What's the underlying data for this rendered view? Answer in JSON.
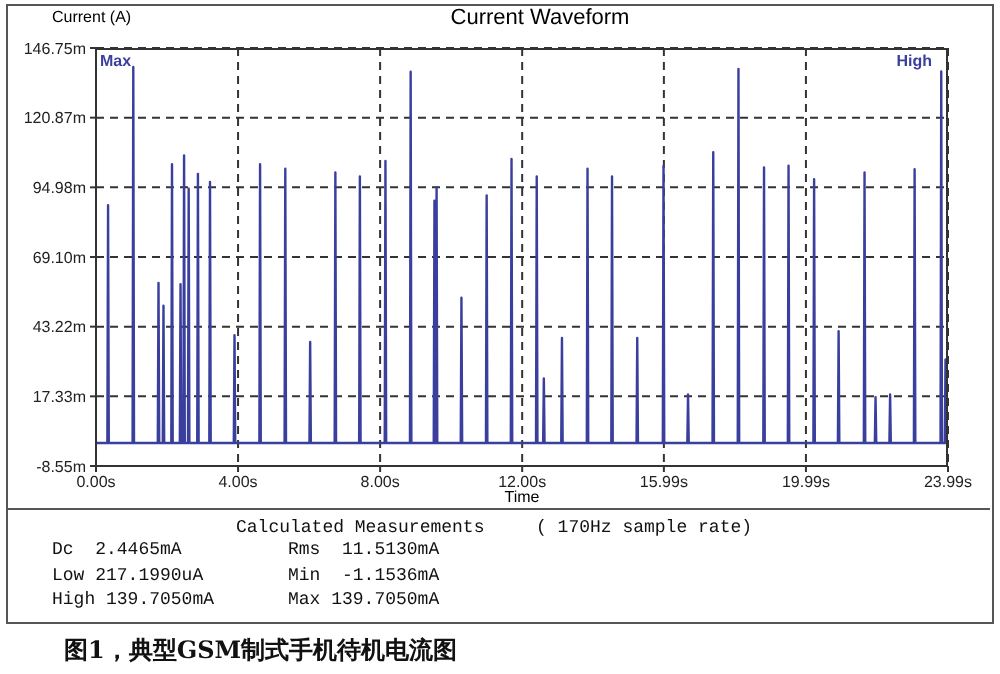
{
  "chart_data": {
    "type": "line",
    "title": "Current Waveform",
    "ylabel": "Current (A)",
    "xlabel": "Time",
    "x": [
      0,
      0.32,
      0.34,
      0.36,
      1.03,
      1.05,
      1.07,
      1.74,
      1.76,
      1.78,
      1.88,
      1.9,
      1.92,
      2.12,
      2.14,
      2.16,
      2.36,
      2.38,
      2.4,
      2.46,
      2.48,
      2.5,
      2.59,
      2.61,
      2.63,
      2.85,
      2.87,
      2.89,
      3.19,
      3.21,
      3.23,
      3.88,
      3.9,
      3.92,
      4.6,
      4.62,
      4.64,
      5.31,
      5.33,
      5.35,
      6.01,
      6.03,
      6.05,
      6.72,
      6.74,
      6.76,
      7.41,
      7.43,
      7.45,
      8.13,
      8.15,
      8.17,
      8.84,
      8.86,
      8.88,
      9.51,
      9.53,
      9.55,
      9.57,
      9.59,
      9.61,
      10.27,
      10.29,
      10.31,
      10.98,
      11,
      11.02,
      11.68,
      11.7,
      11.72,
      12.39,
      12.41,
      12.43,
      12.59,
      12.61,
      12.63,
      13.1,
      13.12,
      13.14,
      13.82,
      13.84,
      13.86,
      14.51,
      14.53,
      14.55,
      15.22,
      15.24,
      15.26,
      15.96,
      15.98,
      16,
      16.65,
      16.67,
      16.69,
      17.36,
      17.38,
      17.4,
      18.07,
      18.09,
      18.11,
      18.79,
      18.81,
      18.83,
      19.48,
      19.5,
      19.52,
      20.2,
      20.22,
      20.24,
      20.89,
      20.91,
      20.93,
      21.62,
      21.64,
      21.66,
      21.93,
      21.95,
      21.97,
      22.34,
      22.36,
      22.38,
      23.03,
      23.05,
      23.07,
      23.78,
      23.8,
      23.82,
      23.9,
      23.92,
      23.94,
      23.99
    ],
    "series": [
      {
        "color": "#3a3f9e",
        "values": [
          0,
          0,
          88.3,
          0,
          0,
          139.7,
          0,
          0,
          59.5,
          0,
          0,
          51,
          0,
          0,
          103.6,
          0,
          0,
          59,
          0,
          0,
          106.8,
          0,
          0,
          94.5,
          0,
          0,
          100,
          0,
          0,
          97,
          0,
          0,
          40,
          0,
          0,
          103.6,
          0,
          0,
          101.9,
          0,
          0,
          37.5,
          0,
          0,
          100.5,
          0,
          0,
          99,
          0,
          0,
          104.8,
          0,
          0,
          137.9,
          0,
          0,
          90,
          0,
          0,
          95,
          0,
          0,
          54,
          0,
          0,
          92,
          0,
          0,
          105.5,
          0,
          0,
          99,
          0,
          0,
          24,
          0,
          0,
          39,
          0,
          0,
          101.9,
          0,
          0,
          99,
          0,
          0,
          39,
          0,
          0,
          102.9,
          0,
          0,
          18,
          0,
          0,
          108,
          0,
          0,
          139,
          0,
          0,
          102.4,
          0,
          0,
          103,
          0,
          0,
          98,
          0,
          0,
          41.5,
          0,
          0,
          100.5,
          0,
          0,
          17,
          0,
          0,
          18,
          0,
          0,
          101.7,
          0,
          0,
          138,
          0,
          0,
          31,
          0,
          0
        ]
      }
    ],
    "xlim": [
      0,
      23.99
    ],
    "xticks": [
      {
        "value": 0,
        "label": "0.00s"
      },
      {
        "value": 4,
        "label": "4.00s"
      },
      {
        "value": 8,
        "label": "8.00s"
      },
      {
        "value": 12,
        "label": "12.00s"
      },
      {
        "value": 15.99,
        "label": "15.99s"
      },
      {
        "value": 19.99,
        "label": "19.99s"
      },
      {
        "value": 23.99,
        "label": "23.99s"
      }
    ],
    "ylim": [
      -8.55,
      146.75
    ],
    "yticks": [
      {
        "value": -8.55,
        "label": "-8.55m"
      },
      {
        "value": 17.33,
        "label": "17.33m"
      },
      {
        "value": 43.22,
        "label": "43.22m"
      },
      {
        "value": 69.1,
        "label": "69.10m"
      },
      {
        "value": 94.98,
        "label": "94.98m"
      },
      {
        "value": 120.87,
        "label": "120.87m"
      },
      {
        "value": 146.75,
        "label": "146.75m"
      }
    ],
    "grid": true,
    "marker": "none",
    "line_style": "solid",
    "legend": false,
    "annotations": [
      "Max",
      "High",
      "Calculated Measurements",
      "( 170Hz sample rate)",
      "Dc  2.4465mA",
      "Rms  11.5130mA",
      "Low 217.1990uA",
      "Min  -1.1536mA",
      "High 139.7050mA",
      "Max 139.7050mA",
      "图1，典型GSM制式手机待机电流图"
    ]
  }
}
